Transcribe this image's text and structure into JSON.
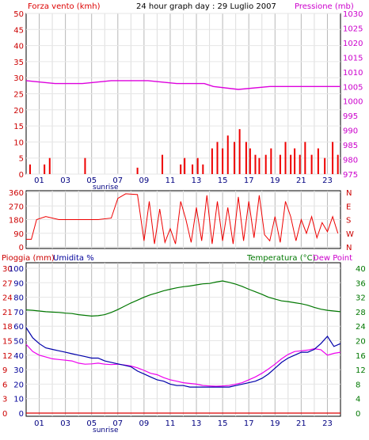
{
  "title": "24 hour graph day : 29 Luglio 2007",
  "x_ticks": [
    "01",
    "03",
    "05",
    "07",
    "09",
    "11",
    "13",
    "15",
    "17",
    "19",
    "21",
    "23"
  ],
  "sunrise_label": "sunrise",
  "colors": {
    "wind": "#ee0000",
    "gust": "#cc0000",
    "pressure": "#dd00dd",
    "humidity": "#0000aa",
    "temperature": "#007700",
    "dewpoint": "#ee00ee",
    "rain": "#dd0000",
    "dir_n": "#0000cc",
    "dir_e": "#007700",
    "grid": "#c8c8c8",
    "frame": "#000000"
  },
  "chart_data": [
    {
      "type": "bar",
      "panel": "wind",
      "left_label": "Forza vento (kmh)",
      "right_label": "Pressione (mb)",
      "left_ticks": [
        "0",
        "5",
        "10",
        "15",
        "20",
        "25",
        "30",
        "35",
        "40",
        "45",
        "50"
      ],
      "right_ticks": [
        "975",
        "980",
        "985",
        "990",
        "995",
        "1000",
        "1005",
        "1010",
        "1015",
        "1020",
        "1025",
        "1030"
      ],
      "ylim_left": [
        0,
        50
      ],
      "ylim_right": [
        975,
        1030
      ],
      "pressure": {
        "x": [
          0,
          2.2,
          4.3,
          6.5,
          9.3,
          11.5,
          13.6,
          14.3,
          16.2,
          18.6,
          24
        ],
        "y": [
          1007,
          1006,
          1006,
          1007,
          1007,
          1006,
          1006,
          1005,
          1004,
          1005,
          1005
        ]
      },
      "wind_bars": {
        "x": [
          0.3,
          1.4,
          1.8,
          4.5,
          8.5,
          10.4,
          11.8,
          12.1,
          12.7,
          13.1,
          13.5,
          14.2,
          14.6,
          15.0,
          15.4,
          15.9,
          16.3,
          16.8,
          17.1,
          17.5,
          17.8,
          18.3,
          18.7,
          19.4,
          19.8,
          20.2,
          20.5,
          20.9,
          21.3,
          21.8,
          22.3,
          22.8,
          23.4,
          23.8
        ],
        "y": [
          3,
          3,
          5,
          5,
          2,
          6,
          3,
          5,
          3,
          5,
          3,
          8,
          10,
          8,
          12,
          10,
          14,
          10,
          8,
          6,
          5,
          6,
          8,
          6,
          10,
          6,
          8,
          6,
          10,
          6,
          8,
          5,
          10,
          6
        ]
      }
    },
    {
      "type": "line",
      "panel": "direction",
      "left_ticks": [
        "0",
        "90",
        "180",
        "270",
        "360"
      ],
      "right_ticks": [
        "N",
        "W",
        "S",
        "E",
        "N"
      ],
      "ylim": [
        0,
        360
      ],
      "x": [
        0,
        0.4,
        0.8,
        1.5,
        2.5,
        3.5,
        4.5,
        5.5,
        6.5,
        7.0,
        7.6,
        8.5,
        9.0,
        9.4,
        9.8,
        10.2,
        10.6,
        11.0,
        11.4,
        11.8,
        12.2,
        12.6,
        13.0,
        13.4,
        13.8,
        14.2,
        14.6,
        15.0,
        15.4,
        15.8,
        16.2,
        16.6,
        17.0,
        17.4,
        17.8,
        18.2,
        18.6,
        19.0,
        19.4,
        19.8,
        20.2,
        20.6,
        21.0,
        21.4,
        21.8,
        22.2,
        22.6,
        23.0,
        23.4,
        23.8
      ],
      "y": [
        50,
        50,
        180,
        200,
        180,
        180,
        180,
        180,
        190,
        320,
        350,
        345,
        40,
        300,
        20,
        250,
        30,
        120,
        20,
        300,
        180,
        30,
        260,
        40,
        340,
        20,
        300,
        40,
        260,
        20,
        330,
        40,
        300,
        60,
        340,
        80,
        40,
        200,
        30,
        300,
        200,
        40,
        180,
        90,
        200,
        60,
        160,
        100,
        200,
        90
      ]
    },
    {
      "type": "line",
      "panel": "weather",
      "left_label": "Pioggia (mm)",
      "humidity_label": "Umidita %",
      "right_label": "Temperatura (°C)",
      "dew_label": "Dew Point",
      "rain_ticks": [
        "0",
        "3",
        "6",
        "9",
        "12",
        "15",
        "18",
        "21",
        "24",
        "27",
        "30"
      ],
      "humidity_ticks": [
        "0",
        "10",
        "20",
        "30",
        "40",
        "50",
        "60",
        "70",
        "80",
        "90",
        "100"
      ],
      "temp_ticks": [
        "0",
        "4",
        "8",
        "12",
        "16",
        "20",
        "24",
        "28",
        "32",
        "36",
        "40"
      ],
      "ylim_rain": [
        0,
        30
      ],
      "ylim_humidity": [
        0,
        100
      ],
      "ylim_temp": [
        0,
        40
      ],
      "temperature": {
        "x": [
          0,
          0.5,
          1.0,
          1.5,
          2.0,
          2.5,
          3.0,
          3.5,
          4.0,
          4.5,
          5.0,
          5.5,
          6.0,
          6.5,
          7.0,
          7.5,
          8.0,
          8.5,
          9.0,
          9.5,
          10.0,
          10.5,
          11.0,
          11.5,
          12.0,
          12.5,
          13.0,
          13.5,
          14.0,
          14.5,
          15.0,
          15.5,
          16.0,
          16.5,
          17.0,
          17.5,
          18.0,
          18.5,
          19.0,
          19.5,
          20.0,
          20.5,
          21.0,
          21.5,
          22.0,
          22.5,
          23.0,
          23.5,
          24.0
        ],
        "y": [
          28.5,
          28.4,
          28.2,
          28.0,
          27.9,
          27.8,
          27.6,
          27.5,
          27.2,
          27.0,
          26.8,
          26.9,
          27.2,
          27.8,
          28.6,
          29.5,
          30.4,
          31.2,
          32.0,
          32.7,
          33.2,
          33.8,
          34.2,
          34.6,
          34.9,
          35.1,
          35.4,
          35.7,
          35.8,
          36.2,
          36.5,
          36.1,
          35.6,
          35.0,
          34.2,
          33.5,
          32.8,
          32.0,
          31.5,
          31.0,
          30.8,
          30.5,
          30.2,
          29.8,
          29.2,
          28.7,
          28.4,
          28.2,
          28.0
        ]
      },
      "humidity": {
        "x": [
          0,
          0.5,
          1.0,
          1.5,
          2.0,
          2.5,
          3.0,
          3.5,
          4.0,
          4.5,
          5.0,
          5.5,
          6.0,
          6.5,
          7.0,
          7.5,
          8.0,
          8.5,
          9.0,
          9.5,
          10.0,
          10.5,
          11.0,
          11.5,
          12.0,
          12.5,
          13.0,
          13.5,
          14.0,
          14.5,
          15.0,
          15.5,
          16.0,
          16.5,
          17.0,
          17.5,
          18.0,
          18.5,
          19.0,
          19.5,
          20.0,
          20.5,
          21.0,
          21.5,
          22.0,
          22.5,
          23.0,
          23.5,
          24.0
        ],
        "y": [
          59,
          52,
          48,
          45,
          44,
          43,
          42,
          41,
          40,
          39,
          38,
          38,
          36,
          35,
          34,
          33,
          32,
          29,
          27,
          25,
          23,
          22,
          20,
          19,
          19,
          18,
          18,
          18,
          18,
          18,
          18,
          18,
          19,
          20,
          21,
          22,
          24,
          27,
          31,
          35,
          38,
          40,
          42,
          42,
          44,
          48,
          53,
          46,
          48
        ]
      },
      "dewpoint": {
        "x": [
          0,
          0.5,
          1.0,
          1.5,
          2.0,
          2.5,
          3.0,
          3.5,
          4.0,
          4.5,
          5.0,
          5.5,
          6.0,
          6.5,
          7.0,
          7.5,
          8.0,
          8.5,
          9.0,
          9.5,
          10.0,
          10.5,
          11.0,
          11.5,
          12.0,
          12.5,
          13.0,
          13.5,
          14.0,
          14.5,
          15.0,
          15.5,
          16.0,
          16.5,
          17.0,
          17.5,
          18.0,
          18.5,
          19.0,
          19.5,
          20.0,
          20.5,
          21.0,
          21.5,
          22.0,
          22.5,
          23.0,
          23.5,
          24.0
        ],
        "y": [
          19.0,
          17.0,
          16.0,
          15.5,
          15.0,
          14.8,
          14.6,
          14.4,
          13.8,
          13.5,
          13.6,
          13.8,
          13.5,
          13.4,
          13.5,
          13.3,
          13.0,
          12.5,
          11.8,
          11.0,
          10.6,
          9.8,
          9.2,
          8.8,
          8.4,
          8.2,
          8.0,
          7.6,
          7.5,
          7.4,
          7.5,
          7.6,
          8.0,
          8.4,
          9.2,
          10.0,
          11.0,
          12.2,
          13.5,
          15.0,
          16.2,
          17.0,
          17.2,
          17.4,
          17.8,
          17.5,
          16.0,
          16.5,
          16.8
        ]
      },
      "rain": {
        "x": [
          0,
          24
        ],
        "y": [
          0,
          0
        ]
      }
    }
  ]
}
